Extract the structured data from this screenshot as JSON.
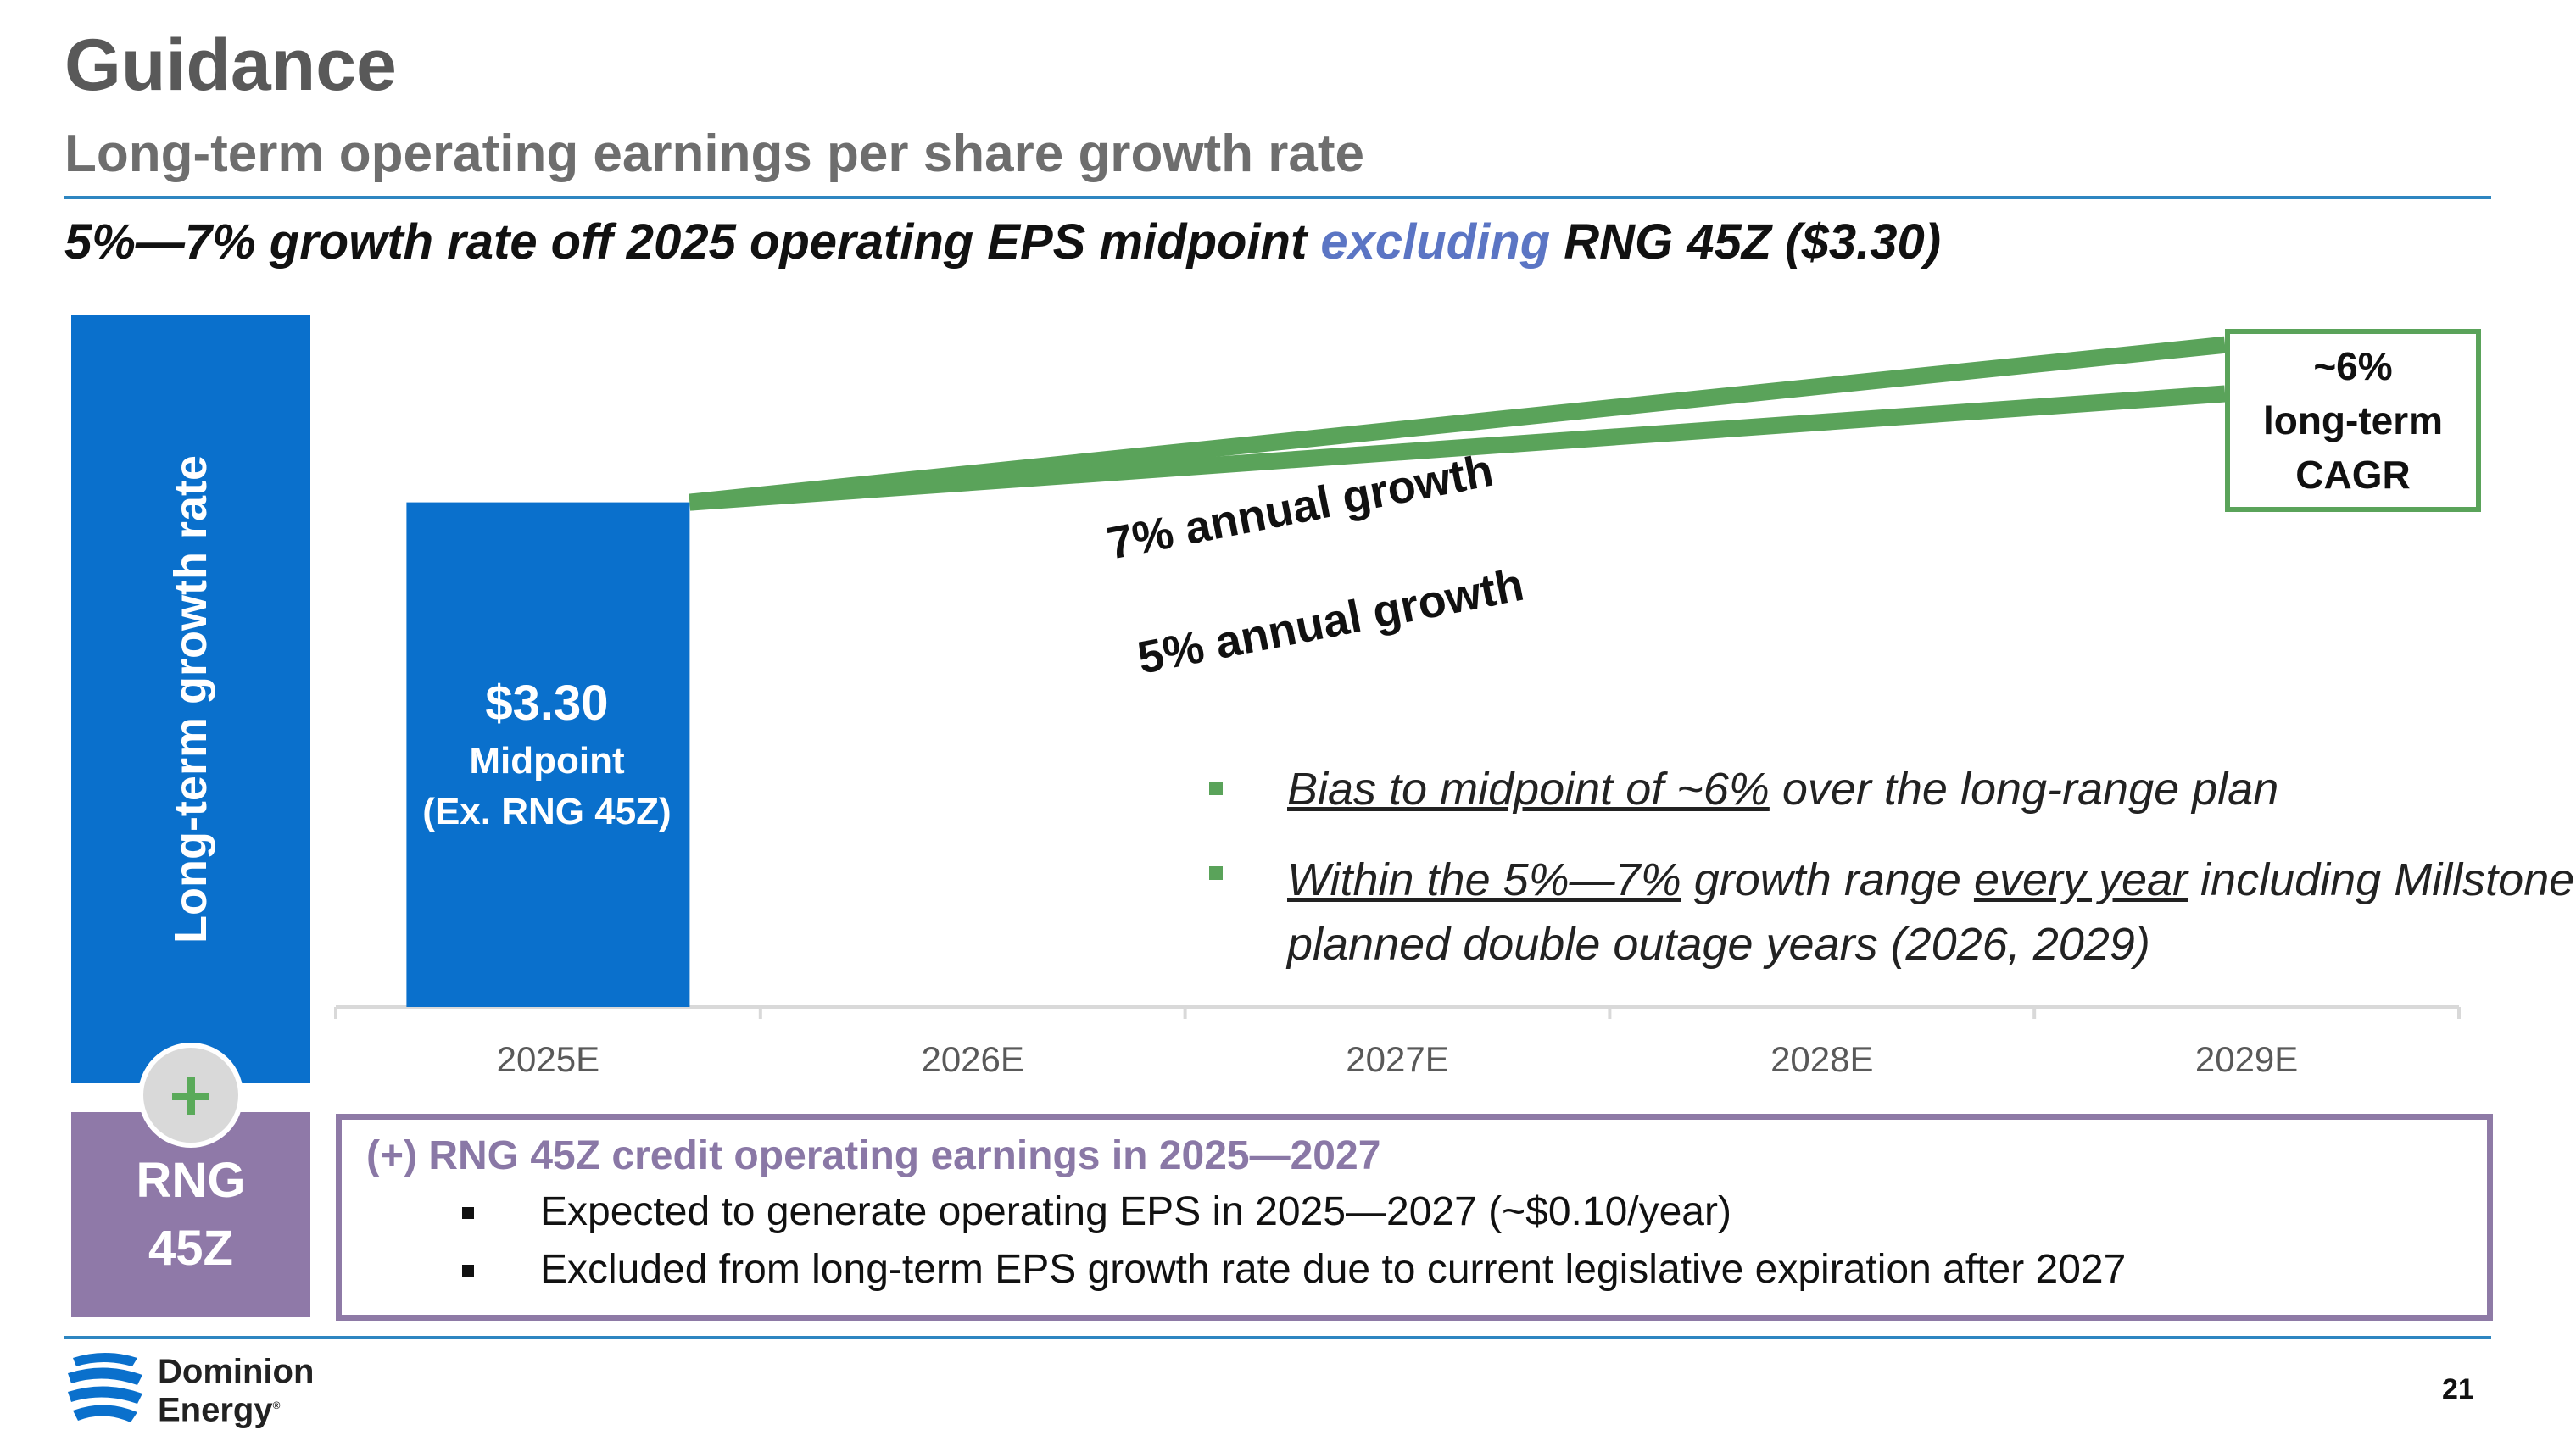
{
  "header": {
    "title": "Guidance",
    "subtitle": "Long-term operating earnings per share growth rate",
    "headline_part1": "5%—7% growth rate off 2025 operating EPS midpoint ",
    "headline_highlight": "excluding",
    "headline_part2": " RNG 45Z ($3.30)"
  },
  "left_panel": {
    "growth_label": "Long-term growth rate",
    "rng_line1": "RNG",
    "rng_line2": "45Z"
  },
  "chart_data": {
    "type": "bar",
    "categories": [
      "2025E",
      "2026E",
      "2027E",
      "2028E",
      "2029E"
    ],
    "values": [
      3.3,
      null,
      null,
      null,
      null
    ],
    "bar_value_label": "$3.30",
    "bar_sublabel1": "Midpoint",
    "bar_sublabel2": "(Ex. RNG 45Z)",
    "series": [
      {
        "name": "7% annual growth",
        "rate": 0.07,
        "values": [
          3.3,
          3.53,
          3.78,
          4.04,
          4.33
        ]
      },
      {
        "name": "5% annual growth",
        "rate": 0.05,
        "values": [
          3.3,
          3.47,
          3.64,
          3.82,
          4.01
        ]
      }
    ],
    "ylim": [
      0,
      4.7
    ],
    "cagr_line1": "~6%",
    "cagr_line2": "long-term",
    "cagr_line3": "CAGR",
    "colors": {
      "bar": "#0a70cc",
      "growth_line": "#5aa35a",
      "axis": "#d9d9d9"
    }
  },
  "bullets": {
    "b1_underlined": "Bias to midpoint of ~6%",
    "b1_rest": " over the long-range plan",
    "b2_underlined1": "Within the 5%—7%",
    "b2_mid": " growth range ",
    "b2_underlined2": "every year",
    "b2_rest": " including Millstone planned double outage years (2026, 2029)"
  },
  "rng_box": {
    "heading": "(+) RNG 45Z credit operating earnings in 2025—2027",
    "items": [
      "Expected to generate operating EPS in 2025—2027 (~$0.10/year)",
      "Excluded from long-term EPS growth rate due to current legislative expiration after 2027"
    ]
  },
  "footer": {
    "logo_line1": "Dominion",
    "logo_line2": "Energy",
    "page_number": "21"
  }
}
